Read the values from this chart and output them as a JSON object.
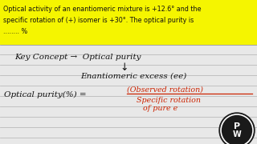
{
  "bg_color": "#e8e8e8",
  "notebook_line_color": "#b0b0b0",
  "highlight_bg": "#f5f500",
  "text_color": "#111111",
  "red_text_color": "#cc2200",
  "header_line1": "Optical activity of an enantiomeric mixture is +12.6° and the",
  "header_line2": "specific rotation of (+) isomer is +30°. The optical purity is",
  "header_line3": "........ %",
  "key_concept": "Key Concept →  Optical purity",
  "down_arrow": "↓",
  "enantiomeric": "Enantiomeric excess (ee)",
  "op_label": "Optical purity(%) = ",
  "fraction_num": "(Observed rotation)",
  "fraction_denom1": "Specific rotation",
  "fraction_denom2": "of pure e",
  "figsize": [
    3.2,
    1.8
  ],
  "dpi": 100
}
